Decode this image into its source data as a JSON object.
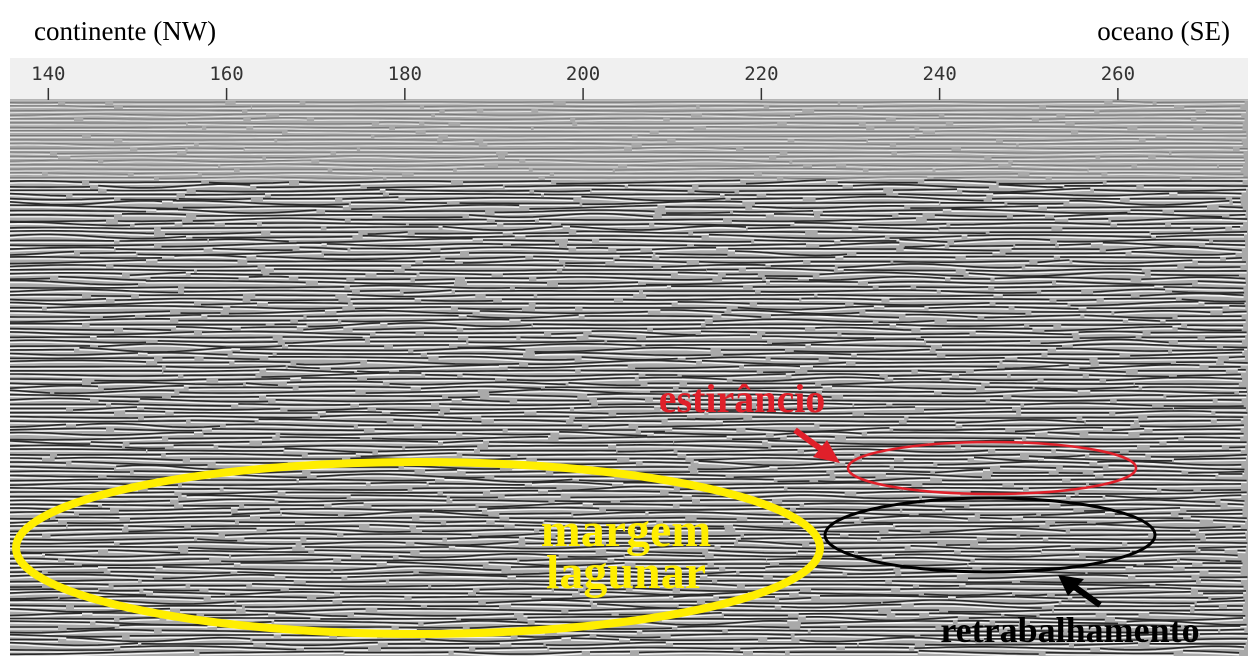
{
  "header": {
    "left": "continente (NW)",
    "right": "oceano (SE)"
  },
  "axis": {
    "xlim": [
      135.7,
      274.6
    ],
    "ticks": [
      140,
      160,
      180,
      200,
      220,
      240,
      260
    ]
  },
  "annotations": {
    "estirancio": "estirâncio",
    "margem_lagunar": [
      "margem",
      "lagunar"
    ],
    "retrabalhamento": "retrabalhamento"
  }
}
